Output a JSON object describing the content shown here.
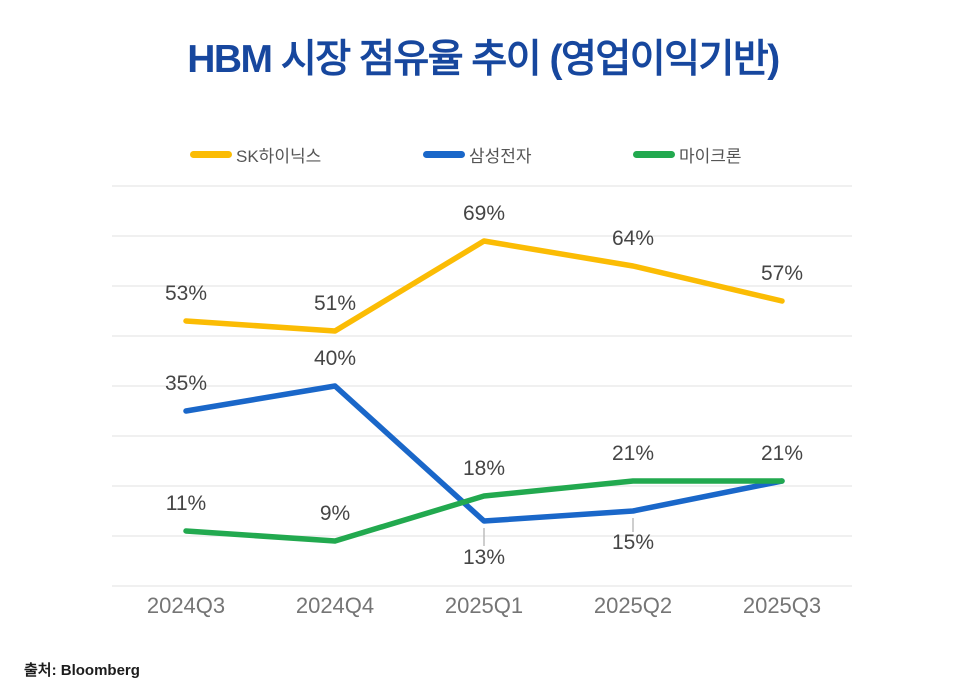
{
  "title": "HBM 시장 점유율 추이 (영업이익기반)",
  "source": "출처: Bloomberg",
  "colors": {
    "title": "#17479E",
    "grid": "#E6E6E6",
    "axis_label": "#757575",
    "data_label": "#454545",
    "legend_label": "#555555",
    "leader_line": "#BDBDBD"
  },
  "chart_data": {
    "type": "line",
    "title": "HBM 시장 점유율 추이 (영업이익기반)",
    "categories": [
      "2024Q3",
      "2024Q4",
      "2025Q1",
      "2025Q2",
      "2025Q3"
    ],
    "series": [
      {
        "name": "SK하이닉스",
        "color": "#FBBC04",
        "values": [
          53,
          51,
          69,
          64,
          57
        ]
      },
      {
        "name": "삼성전자",
        "color": "#1A67C9",
        "values": [
          35,
          40,
          13,
          15,
          21
        ]
      },
      {
        "name": "마이크론",
        "color": "#22A94F",
        "values": [
          11,
          9,
          18,
          21,
          21
        ]
      }
    ],
    "xlabel": "",
    "ylabel": "",
    "ylim": [
      0,
      80
    ],
    "grid_step": 10,
    "grid": "horizontal-only, no y tick labels",
    "legend_position": "top",
    "label_format": "{value}%",
    "source": "출처: Bloomberg"
  }
}
